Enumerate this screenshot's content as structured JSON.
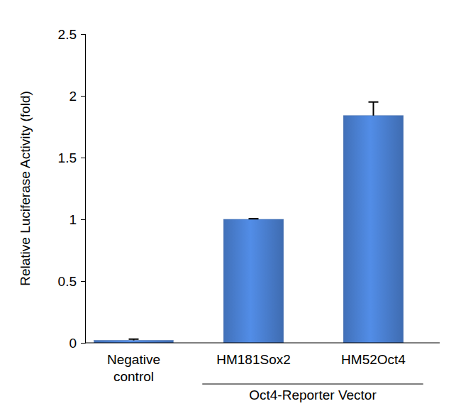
{
  "chart_data": {
    "type": "bar",
    "y_label": "Relative Luciferase Activity (fold)",
    "categories": [
      "Negative control",
      "HM181Sox2",
      "HM52Oct4"
    ],
    "values": [
      0.02,
      1.0,
      1.84
    ],
    "errors": [
      0.01,
      0.005,
      0.11
    ],
    "color": "#4a7fd0",
    "ylim": [
      0,
      2.5
    ],
    "yticks": [
      0,
      0.5,
      1,
      1.5,
      2,
      2.5
    ],
    "grid": false,
    "annotations": [
      "Oct4-Reporter Vector"
    ]
  }
}
